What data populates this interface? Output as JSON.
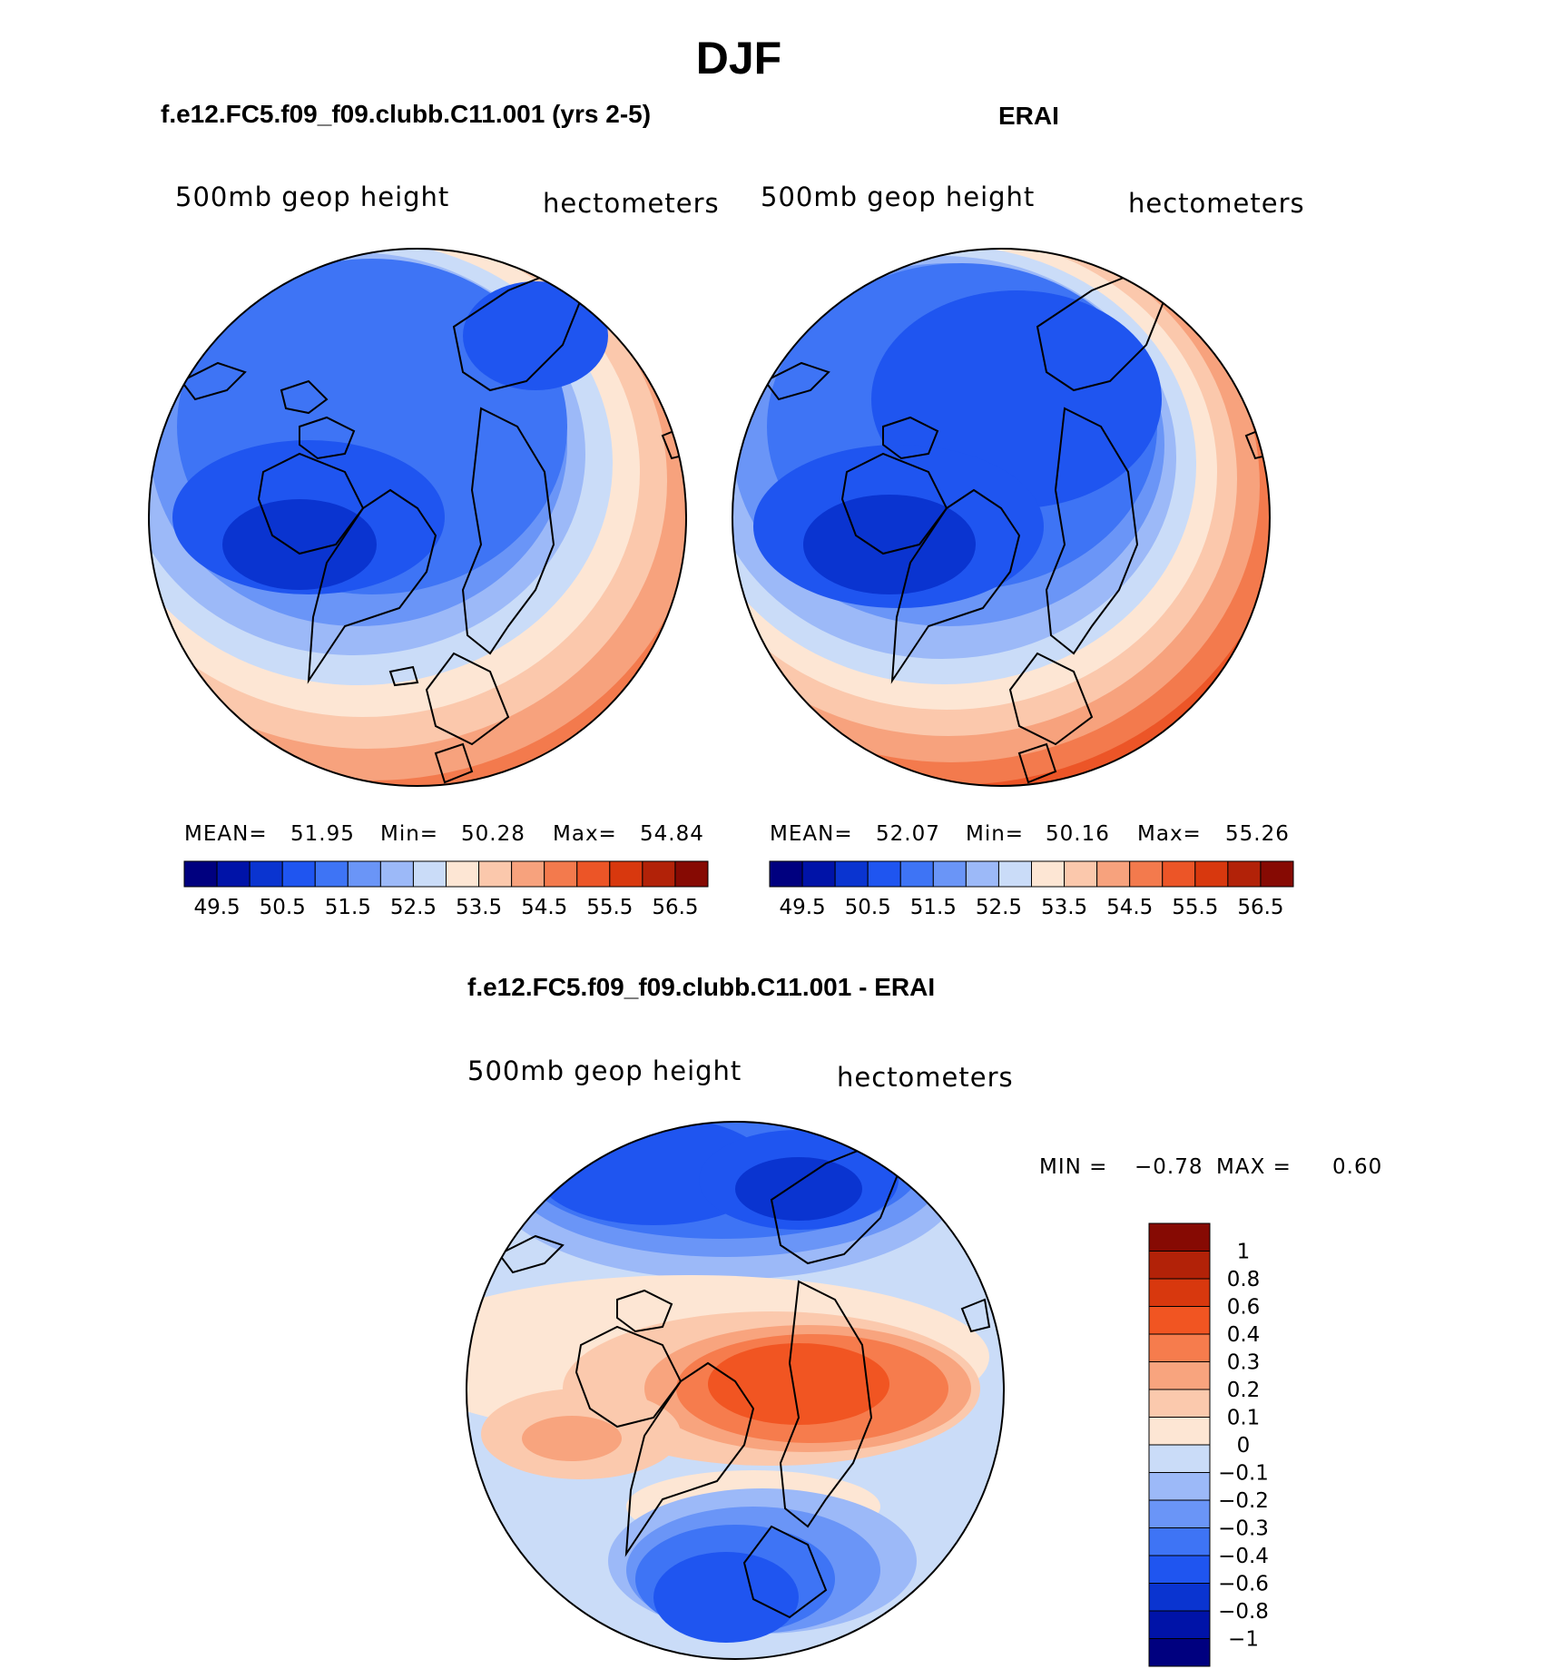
{
  "page_title": "DJF",
  "panel_left": {
    "title": "f.e12.FC5.f09_f09.clubb.C11.001 (yrs 2-5)",
    "field_label": "500mb geop height",
    "units_label": "hectometers",
    "stats": {
      "mean_label": "MEAN=",
      "mean": "51.95",
      "min_label": "Min=",
      "min": "50.28",
      "max_label": "Max=",
      "max": "54.84"
    },
    "colorbar_ticks": [
      "49.5",
      "50.5",
      "51.5",
      "52.5",
      "53.5",
      "54.5",
      "55.5",
      "56.5"
    ]
  },
  "panel_right": {
    "title": "ERAI",
    "field_label": "500mb geop height",
    "units_label": "hectometers",
    "stats": {
      "mean_label": "MEAN=",
      "mean": "52.07",
      "min_label": "Min=",
      "min": "50.16",
      "max_label": "Max=",
      "max": "55.26"
    },
    "colorbar_ticks": [
      "49.5",
      "50.5",
      "51.5",
      "52.5",
      "53.5",
      "54.5",
      "55.5",
      "56.5"
    ]
  },
  "panel_diff": {
    "title": "f.e12.FC5.f09_f09.clubb.C11.001 - ERAI",
    "field_label": "500mb geop height",
    "units_label": "hectometers",
    "minmax": {
      "min_label": "MIN =",
      "min": "−0.78",
      "max_label": "MAX =",
      "max": "0.60"
    },
    "colorbar_ticks": [
      "1",
      "0.8",
      "0.6",
      "0.4",
      "0.3",
      "0.2",
      "0.1",
      "0",
      "−0.1",
      "−0.2",
      "−0.3",
      "−0.4",
      "−0.6",
      "−0.8",
      "−1"
    ]
  },
  "colors": {
    "abs_scale": [
      "#00007f",
      "#0013a8",
      "#0a34d0",
      "#1f55f0",
      "#3e74f5",
      "#6a95f7",
      "#9cb9f8",
      "#cadcf8",
      "#fde6d4",
      "#fbc8ac",
      "#f7a27d",
      "#f37a4d",
      "#ec5527",
      "#d8380e",
      "#b22208",
      "#860a03"
    ],
    "diff_scale": [
      "#860a03",
      "#b22208",
      "#d8380e",
      "#f15522",
      "#f67c4d",
      "#f8a47e",
      "#fbc9ad",
      "#fde6d4",
      "#cadcf8",
      "#9cb9f8",
      "#6a95f7",
      "#3e74f5",
      "#1f55f0",
      "#0a34d0",
      "#0013a8",
      "#00007f"
    ]
  }
}
